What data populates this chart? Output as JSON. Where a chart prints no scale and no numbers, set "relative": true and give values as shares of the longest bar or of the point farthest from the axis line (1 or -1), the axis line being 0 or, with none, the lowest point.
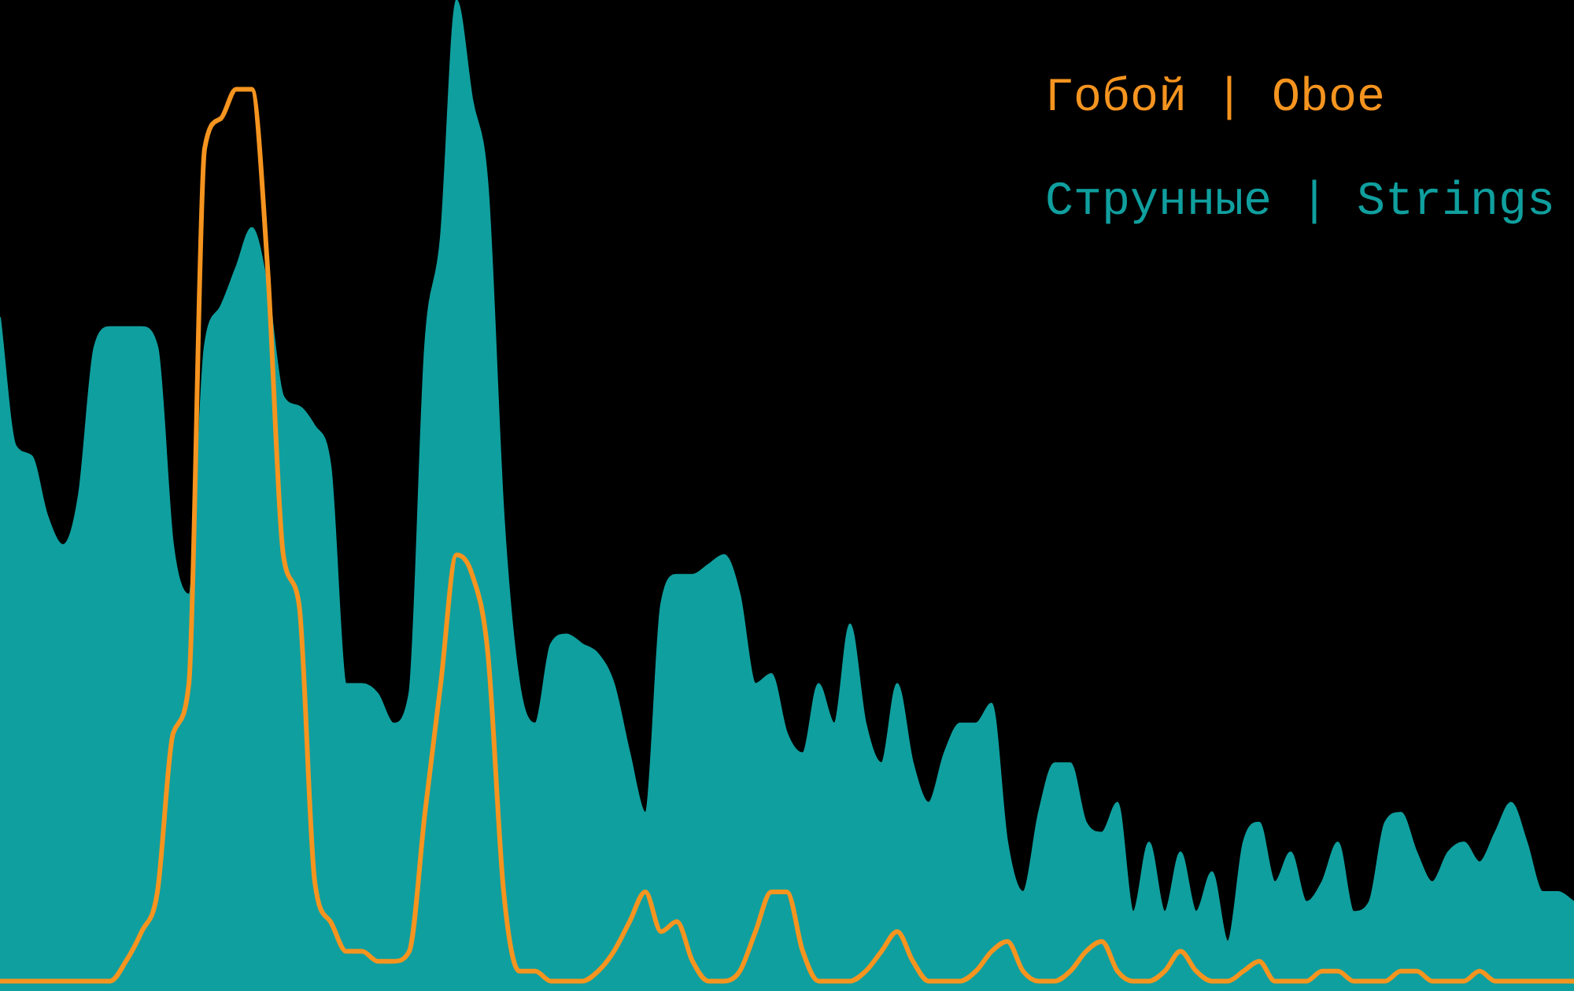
{
  "chart_data": {
    "type": "area",
    "relative": true,
    "legend": "top right",
    "categories": [
      null,
      null,
      null,
      null,
      null,
      null,
      null,
      null,
      null,
      null,
      null,
      null,
      null,
      null,
      null,
      null,
      null,
      null,
      null,
      null,
      null,
      null,
      null,
      null,
      null,
      null,
      null,
      null,
      null,
      null,
      null,
      null,
      null,
      null,
      null,
      null,
      null,
      null,
      null,
      null,
      null,
      null,
      null,
      null,
      null,
      null,
      null,
      null,
      null,
      null,
      null,
      null,
      null,
      null,
      null,
      null,
      null,
      null,
      null,
      null,
      null,
      null,
      null,
      null,
      null,
      null,
      null,
      null,
      null,
      null,
      null,
      null,
      null,
      null,
      null,
      null,
      null,
      null,
      null,
      null,
      null,
      null,
      null,
      null,
      null,
      null,
      null,
      null,
      null,
      null,
      null,
      null,
      null,
      null,
      null,
      null,
      null,
      null,
      null,
      null,
      null
    ],
    "series": [
      {
        "name": "Гобой | Oboe",
        "type": "line",
        "color": "#f5941f",
        "values": [
          0.01,
          0.01,
          0.01,
          0.01,
          0.01,
          0.01,
          0.01,
          0.01,
          0.03,
          0.06,
          0.1,
          0.26,
          0.31,
          0.85,
          0.88,
          0.91,
          0.91,
          0.73,
          0.44,
          0.39,
          0.11,
          0.07,
          0.04,
          0.04,
          0.03,
          0.03,
          0.04,
          0.18,
          0.31,
          0.44,
          0.42,
          0.34,
          0.1,
          0.02,
          0.02,
          0.01,
          0.01,
          0.01,
          0.02,
          0.04,
          0.07,
          0.1,
          0.06,
          0.07,
          0.03,
          0.01,
          0.01,
          0.02,
          0.06,
          0.1,
          0.1,
          0.04,
          0.01,
          0.01,
          0.01,
          0.02,
          0.04,
          0.06,
          0.03,
          0.01,
          0.01,
          0.01,
          0.02,
          0.04,
          0.05,
          0.02,
          0.01,
          0.01,
          0.02,
          0.04,
          0.05,
          0.02,
          0.01,
          0.01,
          0.02,
          0.04,
          0.02,
          0.01,
          0.01,
          0.02,
          0.03,
          0.01,
          0.01,
          0.01,
          0.02,
          0.02,
          0.01,
          0.01,
          0.01,
          0.02,
          0.02,
          0.01,
          0.01,
          0.01,
          0.02,
          0.01,
          0.01,
          0.01,
          0.01,
          0.01,
          0.01
        ]
      },
      {
        "name": "Струнные | Strings",
        "color": "#109f9f",
        "values": [
          0.68,
          0.55,
          0.54,
          0.48,
          0.45,
          0.5,
          0.65,
          0.67,
          0.67,
          0.67,
          0.65,
          0.45,
          0.4,
          0.65,
          0.69,
          0.73,
          0.77,
          0.71,
          0.6,
          0.59,
          0.57,
          0.53,
          0.31,
          0.31,
          0.3,
          0.27,
          0.3,
          0.65,
          0.76,
          1,
          0.9,
          0.81,
          0.48,
          0.31,
          0.27,
          0.35,
          0.36,
          0.35,
          0.34,
          0.31,
          0.24,
          0.18,
          0.39,
          0.42,
          0.42,
          0.43,
          0.44,
          0.4,
          0.31,
          0.32,
          0.26,
          0.24,
          0.31,
          0.27,
          0.37,
          0.27,
          0.23,
          0.31,
          0.23,
          0.19,
          0.24,
          0.27,
          0.27,
          0.29,
          0.15,
          0.1,
          0.18,
          0.23,
          0.23,
          0.17,
          0.16,
          0.19,
          0.08,
          0.15,
          0.08,
          0.14,
          0.08,
          0.12,
          0.05,
          0.15,
          0.17,
          0.11,
          0.14,
          0.09,
          0.11,
          0.15,
          0.08,
          0.09,
          0.17,
          0.18,
          0.14,
          0.11,
          0.14,
          0.15,
          0.13,
          0.16,
          0.19,
          0.15,
          0.1,
          0.1,
          0.09
        ]
      }
    ]
  }
}
